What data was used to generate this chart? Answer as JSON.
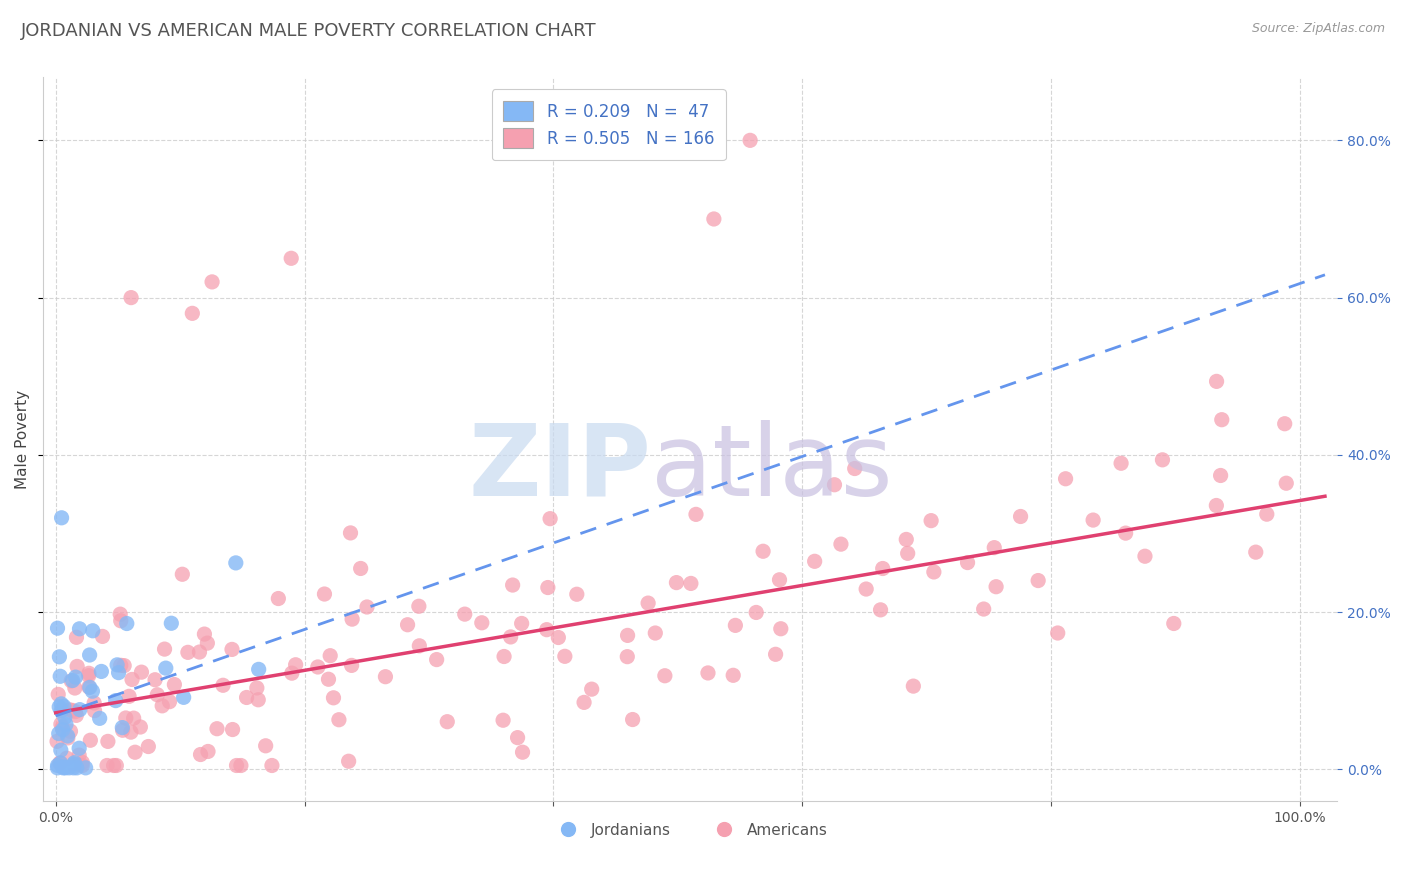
{
  "title": "JORDANIAN VS AMERICAN MALE POVERTY CORRELATION CHART",
  "source_text": "Source: ZipAtlas.com",
  "ylabel": "Male Poverty",
  "jordanian_R": 0.209,
  "jordanian_N": 47,
  "american_R": 0.505,
  "american_N": 166,
  "jordanian_color": "#85b8f5",
  "jordanian_line_color": "#6495ED",
  "american_color": "#f5a0b0",
  "american_line_color": "#e04070",
  "legend_jordan_label": "R = 0.209   N =  47",
  "legend_american_label": "R = 0.505   N = 166",
  "background_color": "#ffffff",
  "grid_color": "#cccccc",
  "title_color": "#555555",
  "label_color": "#4472c4",
  "watermark_zip_color": "#c8daf0",
  "watermark_atlas_color": "#c8c0e0",
  "xlim": [
    -0.01,
    1.03
  ],
  "ylim": [
    -0.04,
    0.88
  ],
  "y_ticks": [
    0.0,
    0.2,
    0.4,
    0.6,
    0.8
  ],
  "y_tick_labels": [
    "0.0%",
    "20.0%",
    "40.0%",
    "60.0%",
    "80.0%"
  ],
  "x_ticks": [
    0.0,
    0.2,
    0.4,
    0.6,
    0.8,
    1.0
  ],
  "jordan_trend_intercept": 0.068,
  "jordan_trend_slope": 0.55,
  "american_trend_intercept": 0.07,
  "american_trend_slope": 0.28
}
